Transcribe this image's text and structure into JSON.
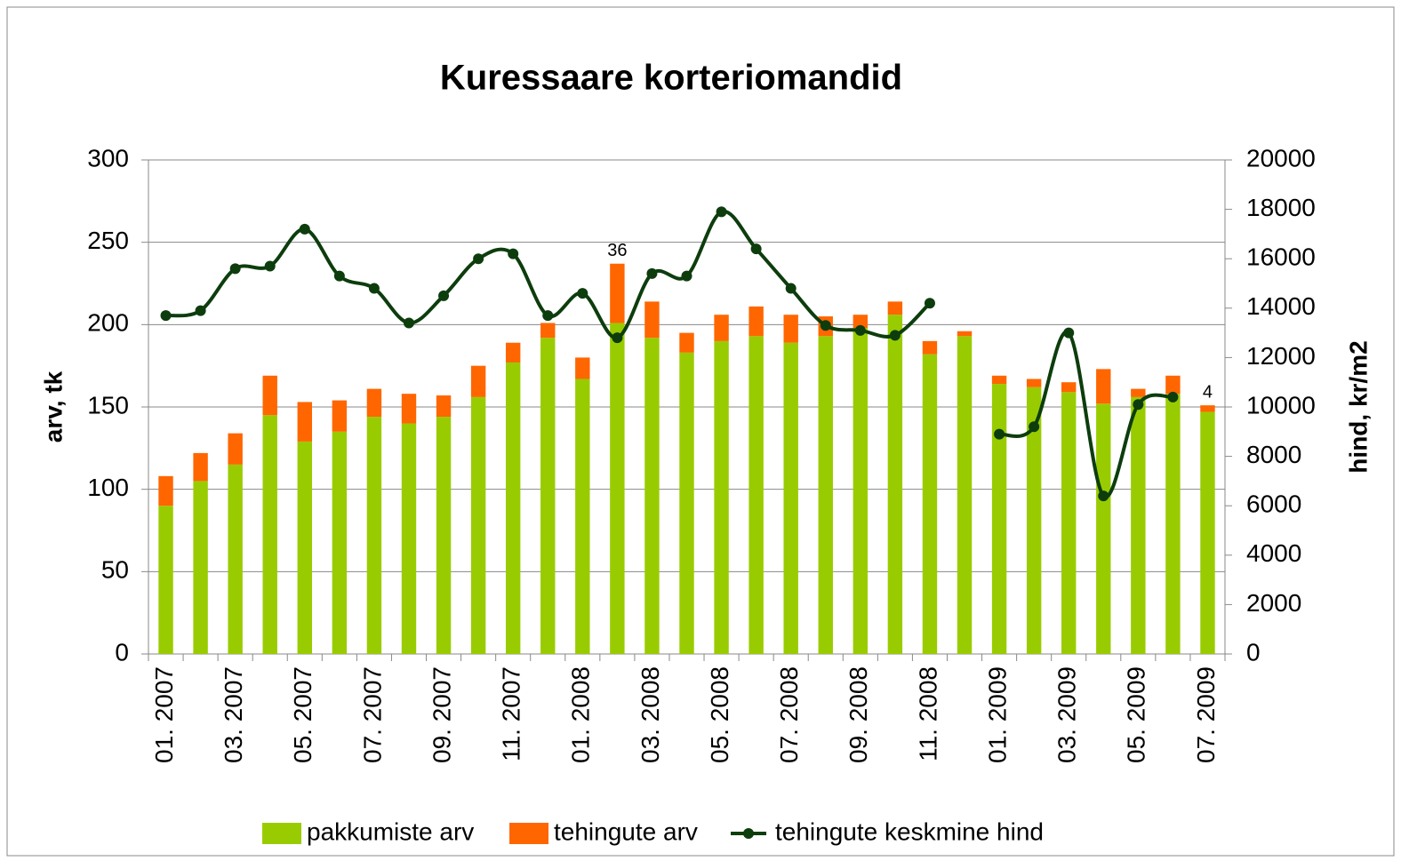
{
  "chart_data": {
    "type": "bar",
    "stacked": true,
    "title": "Kuressaare korteriomandid",
    "y_label": "arv, tk",
    "y2_label": "hind, kr/m2",
    "categories": [
      "01. 2007",
      null,
      "03. 2007",
      null,
      "05. 2007",
      null,
      "07. 2007",
      null,
      "09. 2007",
      null,
      "11. 2007",
      null,
      "01. 2008",
      null,
      "03. 2008",
      null,
      "05. 2008",
      null,
      "07. 2008",
      null,
      "09. 2008",
      null,
      "11. 2008",
      null,
      "01. 2009",
      null,
      "03. 2009",
      null,
      "05. 2009",
      null,
      "07. 2009"
    ],
    "series": [
      {
        "name": "pakkumiste arv",
        "color": "#99cc00",
        "values": [
          90,
          105,
          115,
          145,
          129,
          135,
          144,
          140,
          144,
          156,
          177,
          192,
          167,
          201,
          192,
          183,
          190,
          193,
          189,
          193,
          198,
          206,
          182,
          193,
          164,
          162,
          159,
          152,
          156,
          158,
          147
        ]
      },
      {
        "name": "tehingute arv",
        "color": "#ff6600",
        "values": [
          18,
          17,
          19,
          24,
          24,
          19,
          17,
          18,
          13,
          19,
          12,
          9,
          13,
          36,
          22,
          12,
          16,
          18,
          17,
          12,
          8,
          8,
          8,
          3,
          5,
          5,
          6,
          21,
          5,
          11,
          4
        ],
        "value_labels": [
          null,
          null,
          null,
          null,
          null,
          null,
          null,
          null,
          null,
          null,
          null,
          null,
          null,
          "36",
          null,
          null,
          null,
          null,
          null,
          null,
          null,
          null,
          null,
          null,
          null,
          null,
          null,
          null,
          null,
          null,
          "4"
        ]
      },
      {
        "name": "tehingute keskmine hind",
        "type": "line",
        "axis": "y2",
        "color": "#0d3d0d",
        "values": [
          13700,
          13900,
          15600,
          15700,
          17200,
          15300,
          14800,
          13400,
          14500,
          16000,
          16200,
          13700,
          14600,
          12800,
          15400,
          15300,
          17900,
          16400,
          14800,
          13300,
          13100,
          12900,
          14200,
          null,
          8900,
          9200,
          13000,
          6400,
          10100,
          10400,
          null
        ]
      }
    ],
    "ylim": [
      0,
      300
    ],
    "yticks": [
      0,
      50,
      100,
      150,
      200,
      250,
      300
    ],
    "y2lim": [
      0,
      20000
    ],
    "y2ticks": [
      0,
      2000,
      4000,
      6000,
      8000,
      10000,
      12000,
      14000,
      16000,
      18000,
      20000
    ],
    "grid": true,
    "legend": "bottom"
  }
}
